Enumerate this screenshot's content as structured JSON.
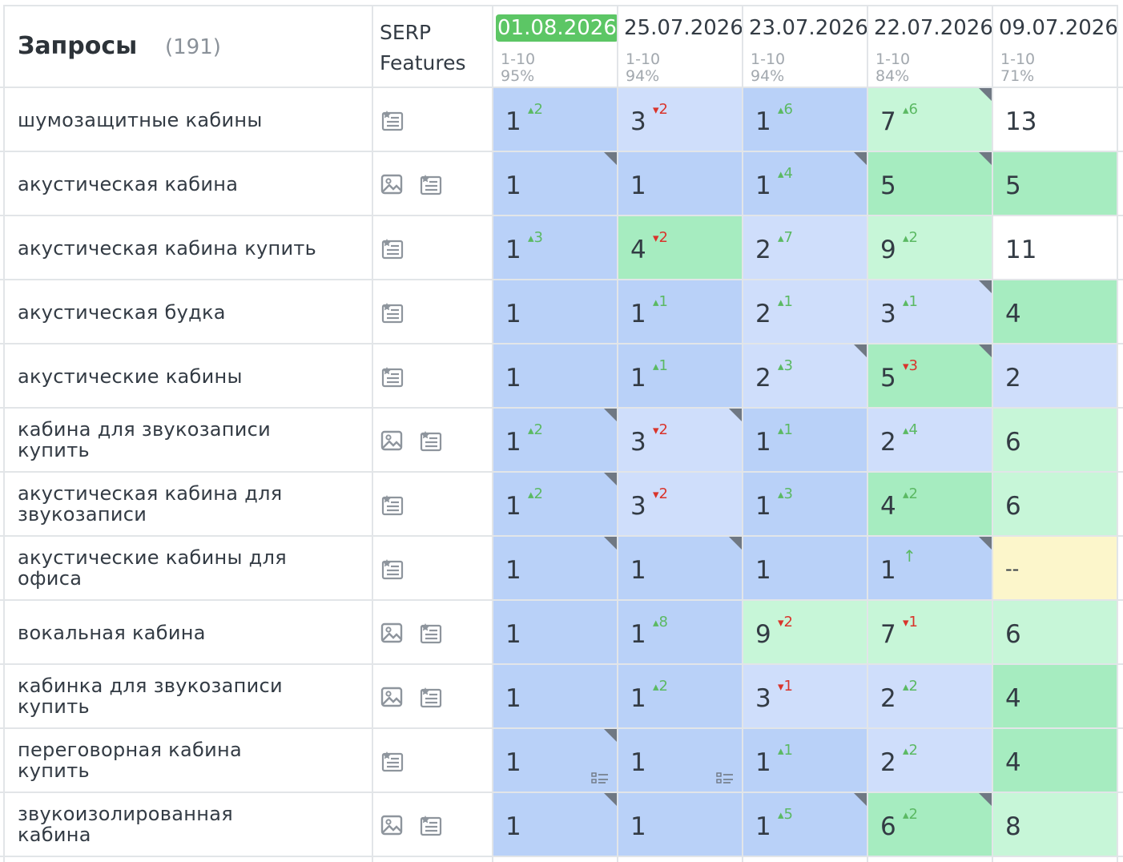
{
  "header": {
    "title": "Запросы",
    "count": "(191)",
    "serp_label_line1": "SERP",
    "serp_label_line2": "Features"
  },
  "colors": {
    "top": "#b9d1f8",
    "good": "#cfdefb",
    "green_dark": "#a6ecc0",
    "green_light": "#c7f6d8",
    "none": "#ffffff",
    "missing": "#fcf6cb",
    "current_date_badge": "#5cc665",
    "delta_up": "#5bb963",
    "delta_down": "#d9342b"
  },
  "dates": [
    {
      "date": "01.08.2026",
      "range": "1-10",
      "pct": "95%",
      "current": true
    },
    {
      "date": "25.07.2026",
      "range": "1-10",
      "pct": "94%",
      "current": false
    },
    {
      "date": "23.07.2026",
      "range": "1-10",
      "pct": "94%",
      "current": false
    },
    {
      "date": "22.07.2026",
      "range": "1-10",
      "pct": "84%",
      "current": false
    },
    {
      "date": "09.07.2026",
      "range": "1-10",
      "pct": "71%",
      "current": false
    }
  ],
  "rows": [
    {
      "query": [
        "шумозащитные кабины"
      ],
      "serp": [
        "list-star-icon"
      ],
      "cells": [
        {
          "pos": "1",
          "delta": "2",
          "dir": "up",
          "bg": "top",
          "corner": false
        },
        {
          "pos": "3",
          "delta": "2",
          "dir": "down",
          "bg": "good",
          "corner": false
        },
        {
          "pos": "1",
          "delta": "6",
          "dir": "up",
          "bg": "top",
          "corner": false
        },
        {
          "pos": "7",
          "delta": "6",
          "dir": "up",
          "bg": "green_light",
          "corner": true
        },
        {
          "pos": "13",
          "delta": "",
          "dir": "",
          "bg": "none",
          "corner": false
        }
      ]
    },
    {
      "query": [
        "акустическая кабина"
      ],
      "serp": [
        "image-icon",
        "list-star-icon"
      ],
      "cells": [
        {
          "pos": "1",
          "delta": "",
          "dir": "",
          "bg": "top",
          "corner": true
        },
        {
          "pos": "1",
          "delta": "",
          "dir": "",
          "bg": "top",
          "corner": false
        },
        {
          "pos": "1",
          "delta": "4",
          "dir": "up",
          "bg": "top",
          "corner": true
        },
        {
          "pos": "5",
          "delta": "",
          "dir": "",
          "bg": "green_dark",
          "corner": true
        },
        {
          "pos": "5",
          "delta": "",
          "dir": "",
          "bg": "green_dark",
          "corner": false
        }
      ]
    },
    {
      "query": [
        "акустическая кабина купить"
      ],
      "serp": [
        "list-star-icon"
      ],
      "cells": [
        {
          "pos": "1",
          "delta": "3",
          "dir": "up",
          "bg": "top",
          "corner": false
        },
        {
          "pos": "4",
          "delta": "2",
          "dir": "down",
          "bg": "green_dark",
          "corner": false
        },
        {
          "pos": "2",
          "delta": "7",
          "dir": "up",
          "bg": "good",
          "corner": false
        },
        {
          "pos": "9",
          "delta": "2",
          "dir": "up",
          "bg": "green_light",
          "corner": false
        },
        {
          "pos": "11",
          "delta": "",
          "dir": "",
          "bg": "none",
          "corner": false
        }
      ]
    },
    {
      "query": [
        "акустическая будка"
      ],
      "serp": [
        "list-star-icon"
      ],
      "cells": [
        {
          "pos": "1",
          "delta": "",
          "dir": "",
          "bg": "top",
          "corner": false
        },
        {
          "pos": "1",
          "delta": "1",
          "dir": "up",
          "bg": "top",
          "corner": false
        },
        {
          "pos": "2",
          "delta": "1",
          "dir": "up",
          "bg": "good",
          "corner": false
        },
        {
          "pos": "3",
          "delta": "1",
          "dir": "up",
          "bg": "good",
          "corner": true
        },
        {
          "pos": "4",
          "delta": "",
          "dir": "",
          "bg": "green_dark",
          "corner": false
        }
      ]
    },
    {
      "query": [
        "акустические кабины"
      ],
      "serp": [
        "list-star-icon"
      ],
      "cells": [
        {
          "pos": "1",
          "delta": "",
          "dir": "",
          "bg": "top",
          "corner": false
        },
        {
          "pos": "1",
          "delta": "1",
          "dir": "up",
          "bg": "top",
          "corner": false
        },
        {
          "pos": "2",
          "delta": "3",
          "dir": "up",
          "bg": "good",
          "corner": true
        },
        {
          "pos": "5",
          "delta": "3",
          "dir": "down",
          "bg": "green_dark",
          "corner": true
        },
        {
          "pos": "2",
          "delta": "",
          "dir": "",
          "bg": "good",
          "corner": false
        }
      ]
    },
    {
      "query": [
        "кабина для звукозаписи",
        "купить"
      ],
      "serp": [
        "image-icon",
        "list-star-icon"
      ],
      "cells": [
        {
          "pos": "1",
          "delta": "2",
          "dir": "up",
          "bg": "top",
          "corner": true
        },
        {
          "pos": "3",
          "delta": "2",
          "dir": "down",
          "bg": "good",
          "corner": true
        },
        {
          "pos": "1",
          "delta": "1",
          "dir": "up",
          "bg": "top",
          "corner": false
        },
        {
          "pos": "2",
          "delta": "4",
          "dir": "up",
          "bg": "good",
          "corner": false
        },
        {
          "pos": "6",
          "delta": "",
          "dir": "",
          "bg": "green_light",
          "corner": false
        }
      ]
    },
    {
      "query": [
        "акустическая кабина для",
        "звукозаписи"
      ],
      "serp": [
        "list-star-icon"
      ],
      "cells": [
        {
          "pos": "1",
          "delta": "2",
          "dir": "up",
          "bg": "top",
          "corner": true
        },
        {
          "pos": "3",
          "delta": "2",
          "dir": "down",
          "bg": "good",
          "corner": false
        },
        {
          "pos": "1",
          "delta": "3",
          "dir": "up",
          "bg": "top",
          "corner": false
        },
        {
          "pos": "4",
          "delta": "2",
          "dir": "up",
          "bg": "green_dark",
          "corner": false
        },
        {
          "pos": "6",
          "delta": "",
          "dir": "",
          "bg": "green_light",
          "corner": false
        }
      ]
    },
    {
      "query": [
        "акустические кабины для",
        "офиса"
      ],
      "serp": [
        "list-star-icon"
      ],
      "cells": [
        {
          "pos": "1",
          "delta": "",
          "dir": "",
          "bg": "top",
          "corner": true
        },
        {
          "pos": "1",
          "delta": "",
          "dir": "",
          "bg": "top",
          "corner": true
        },
        {
          "pos": "1",
          "delta": "",
          "dir": "",
          "bg": "top",
          "corner": false
        },
        {
          "pos": "1",
          "delta": "↑",
          "dir": "up",
          "bg": "top",
          "corner": true
        },
        {
          "pos": "--",
          "delta": "",
          "dir": "",
          "bg": "missing",
          "corner": false
        }
      ]
    },
    {
      "query": [
        "вокальная кабина"
      ],
      "serp": [
        "image-icon",
        "list-star-icon"
      ],
      "cells": [
        {
          "pos": "1",
          "delta": "",
          "dir": "",
          "bg": "top",
          "corner": false
        },
        {
          "pos": "1",
          "delta": "8",
          "dir": "up",
          "bg": "top",
          "corner": false
        },
        {
          "pos": "9",
          "delta": "2",
          "dir": "down",
          "bg": "green_light",
          "corner": false
        },
        {
          "pos": "7",
          "delta": "1",
          "dir": "down",
          "bg": "green_light",
          "corner": false
        },
        {
          "pos": "6",
          "delta": "",
          "dir": "",
          "bg": "green_light",
          "corner": false
        }
      ]
    },
    {
      "query": [
        "кабинка для звукозаписи",
        "купить"
      ],
      "serp": [
        "image-icon",
        "list-star-icon"
      ],
      "cells": [
        {
          "pos": "1",
          "delta": "",
          "dir": "",
          "bg": "top",
          "corner": false
        },
        {
          "pos": "1",
          "delta": "2",
          "dir": "up",
          "bg": "top",
          "corner": false
        },
        {
          "pos": "3",
          "delta": "1",
          "dir": "down",
          "bg": "good",
          "corner": false
        },
        {
          "pos": "2",
          "delta": "2",
          "dir": "up",
          "bg": "good",
          "corner": false
        },
        {
          "pos": "4",
          "delta": "",
          "dir": "",
          "bg": "green_dark",
          "corner": false
        }
      ]
    },
    {
      "query": [
        "переговорная кабина",
        "купить"
      ],
      "serp": [
        "list-star-icon"
      ],
      "cells": [
        {
          "pos": "1",
          "delta": "",
          "dir": "",
          "bg": "top",
          "corner": true,
          "list": true
        },
        {
          "pos": "1",
          "delta": "",
          "dir": "",
          "bg": "top",
          "corner": false,
          "list": true
        },
        {
          "pos": "1",
          "delta": "1",
          "dir": "up",
          "bg": "top",
          "corner": false
        },
        {
          "pos": "2",
          "delta": "2",
          "dir": "up",
          "bg": "good",
          "corner": false
        },
        {
          "pos": "4",
          "delta": "",
          "dir": "",
          "bg": "green_dark",
          "corner": false
        }
      ]
    },
    {
      "query": [
        "звукоизолированная",
        "кабина"
      ],
      "serp": [
        "image-icon",
        "list-star-icon"
      ],
      "cells": [
        {
          "pos": "1",
          "delta": "",
          "dir": "",
          "bg": "top",
          "corner": true
        },
        {
          "pos": "1",
          "delta": "",
          "dir": "",
          "bg": "top",
          "corner": false
        },
        {
          "pos": "1",
          "delta": "5",
          "dir": "up",
          "bg": "top",
          "corner": true
        },
        {
          "pos": "6",
          "delta": "2",
          "dir": "up",
          "bg": "green_dark",
          "corner": true
        },
        {
          "pos": "8",
          "delta": "",
          "dir": "",
          "bg": "green_light",
          "corner": false
        }
      ]
    }
  ]
}
